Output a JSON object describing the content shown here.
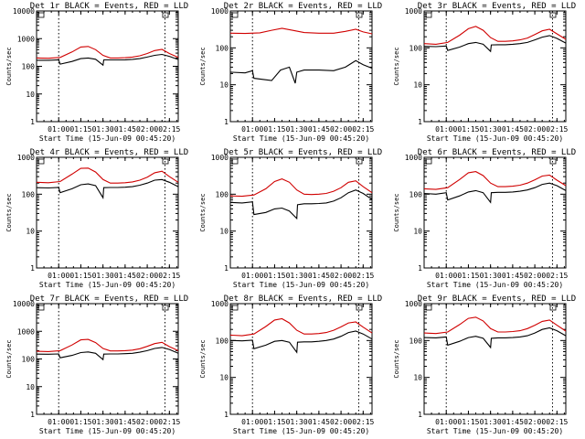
{
  "chart_data": [
    {
      "type": "line",
      "title": "Det 1r BLACK = Events, RED = LLD",
      "xlabel": "Start Time (15-Jun-09 00:45:20)",
      "ylabel": "Counts/sec",
      "ymax_label": "10000",
      "yticks": [
        "10000",
        "1000",
        "100",
        "10",
        "1"
      ],
      "xticks": [
        "01:00",
        "01:15",
        "01:30",
        "01:45",
        "02:00",
        "02:15"
      ],
      "yscale": "log",
      "ylim": [
        1,
        10000
      ],
      "xlim_minutes": [
        0,
        96
      ],
      "vlines_minutes": [
        15,
        87
      ],
      "series": [
        {
          "color": "#d00000",
          "x": [
            0,
            8,
            16,
            24,
            30,
            35,
            40,
            45,
            50,
            55,
            60,
            65,
            70,
            75,
            80,
            85,
            90,
            96
          ],
          "y": [
            200,
            195,
            210,
            330,
            500,
            520,
            400,
            250,
            200,
            200,
            205,
            215,
            240,
            290,
            370,
            410,
            290,
            210
          ]
        },
        {
          "color": "#000000",
          "x": [
            0,
            8,
            15,
            16,
            24,
            30,
            35,
            40,
            45,
            45.5,
            50,
            55,
            60,
            65,
            70,
            75,
            80,
            85,
            90,
            96
          ],
          "y": [
            165,
            165,
            170,
            120,
            150,
            190,
            200,
            180,
            110,
            170,
            170,
            170,
            172,
            178,
            190,
            215,
            250,
            270,
            230,
            175
          ]
        }
      ]
    },
    {
      "type": "line",
      "title": "Det 2r BLACK = Events, RED = LLD",
      "xlabel": "Start Time (15-Jun-09 00:45:20)",
      "ylabel": "Counts/sec",
      "ymax_label": "1000",
      "yticks": [
        "1000",
        "100",
        "10",
        "1"
      ],
      "xticks": [
        "01:00",
        "01:15",
        "01:30",
        "01:45",
        "02:00",
        "02:15"
      ],
      "yscale": "log",
      "ylim": [
        1,
        1000
      ],
      "xlim_minutes": [
        0,
        96
      ],
      "vlines_minutes": [
        15,
        87
      ],
      "series": [
        {
          "color": "#d00000",
          "x": [
            0,
            10,
            20,
            28,
            35,
            42,
            50,
            60,
            70,
            78,
            85,
            90,
            96
          ],
          "y": [
            250,
            245,
            255,
            300,
            340,
            300,
            260,
            250,
            250,
            280,
            320,
            270,
            240
          ]
        },
        {
          "color": "#000000",
          "x": [
            0,
            10,
            15,
            16,
            22,
            28,
            34,
            40,
            44,
            45,
            50,
            60,
            70,
            78,
            85,
            90,
            96
          ],
          "y": [
            22,
            21,
            24,
            15,
            14,
            13,
            25,
            30,
            11,
            22,
            25,
            25,
            24,
            30,
            45,
            35,
            28
          ]
        }
      ]
    },
    {
      "type": "line",
      "title": "Det 3r BLACK = Events, RED = LLD",
      "xlabel": "Start Time (15-Jun-09 00:45:20)",
      "ylabel": "Counts/sec",
      "ymax_label": "1000",
      "yticks": [
        "1000",
        "100",
        "10",
        "1"
      ],
      "xticks": [
        "01:00",
        "01:15",
        "01:30",
        "01:45",
        "02:00",
        "02:15"
      ],
      "yscale": "log",
      "ylim": [
        1,
        1000
      ],
      "xlim_minutes": [
        0,
        96
      ],
      "vlines_minutes": [
        15,
        87
      ],
      "series": [
        {
          "color": "#d00000",
          "x": [
            0,
            8,
            16,
            24,
            30,
            35,
            40,
            45,
            50,
            55,
            60,
            65,
            70,
            75,
            80,
            85,
            90,
            96
          ],
          "y": [
            130,
            125,
            140,
            220,
            330,
            380,
            300,
            190,
            150,
            150,
            155,
            165,
            185,
            230,
            290,
            320,
            240,
            170
          ]
        },
        {
          "color": "#000000",
          "x": [
            0,
            8,
            15,
            16,
            24,
            30,
            35,
            40,
            45,
            45.5,
            50,
            55,
            60,
            65,
            70,
            75,
            80,
            85,
            90,
            96
          ],
          "y": [
            110,
            108,
            112,
            85,
            105,
            130,
            140,
            125,
            80,
            120,
            122,
            122,
            125,
            130,
            140,
            165,
            195,
            215,
            180,
            135
          ]
        }
      ]
    },
    {
      "type": "line",
      "title": "Det 4r BLACK = Events, RED = LLD",
      "xlabel": "Start Time (15-Jun-09 00:45:20)",
      "ylabel": "Counts/sec",
      "ymax_label": "1000",
      "yticks": [
        "1000",
        "100",
        "10",
        "1"
      ],
      "xticks": [
        "01:00",
        "01:15",
        "01:30",
        "01:45",
        "02:00",
        "02:15"
      ],
      "yscale": "log",
      "ylim": [
        1,
        1000
      ],
      "xlim_minutes": [
        0,
        96
      ],
      "vlines_minutes": [
        15,
        87
      ],
      "series": [
        {
          "color": "#d00000",
          "x": [
            0,
            8,
            16,
            24,
            30,
            35,
            40,
            45,
            50,
            55,
            60,
            65,
            70,
            75,
            80,
            85,
            90,
            96
          ],
          "y": [
            210,
            205,
            220,
            350,
            500,
            510,
            400,
            250,
            200,
            200,
            205,
            215,
            240,
            290,
            380,
            420,
            300,
            210
          ]
        },
        {
          "color": "#000000",
          "x": [
            0,
            8,
            15,
            16,
            24,
            30,
            35,
            40,
            45,
            45.5,
            50,
            55,
            60,
            65,
            70,
            75,
            80,
            85,
            90,
            96
          ],
          "y": [
            150,
            148,
            152,
            110,
            140,
            180,
            190,
            170,
            80,
            150,
            152,
            152,
            155,
            160,
            175,
            200,
            240,
            250,
            210,
            160
          ]
        }
      ]
    },
    {
      "type": "line",
      "title": "Det 5r BLACK = Events, RED = LLD",
      "xlabel": "Start Time (15-Jun-09 00:45:20)",
      "ylabel": "Counts/sec",
      "ymax_label": "1000",
      "yticks": [
        "1000",
        "100",
        "10",
        "1"
      ],
      "xticks": [
        "01:00",
        "01:15",
        "01:30",
        "01:45",
        "02:00",
        "02:15"
      ],
      "yscale": "log",
      "ylim": [
        1,
        1000
      ],
      "xlim_minutes": [
        0,
        96
      ],
      "vlines_minutes": [
        15,
        87
      ],
      "series": [
        {
          "color": "#d00000",
          "x": [
            0,
            8,
            16,
            24,
            30,
            35,
            40,
            45,
            50,
            55,
            60,
            65,
            70,
            75,
            80,
            85,
            90,
            96
          ],
          "y": [
            90,
            88,
            95,
            140,
            220,
            260,
            210,
            130,
            100,
            98,
            100,
            105,
            120,
            150,
            210,
            230,
            160,
            110
          ]
        },
        {
          "color": "#000000",
          "x": [
            0,
            8,
            15,
            16,
            24,
            30,
            35,
            40,
            45,
            45.5,
            50,
            55,
            60,
            65,
            70,
            75,
            80,
            85,
            90,
            96
          ],
          "y": [
            60,
            58,
            62,
            28,
            32,
            40,
            42,
            35,
            22,
            52,
            55,
            55,
            56,
            58,
            65,
            80,
            110,
            130,
            105,
            72
          ]
        }
      ]
    },
    {
      "type": "line",
      "title": "Det 6r BLACK = Events, RED = LLD",
      "xlabel": "Start Time (15-Jun-09 00:45:20)",
      "ylabel": "Counts/sec",
      "ymax_label": "1000",
      "yticks": [
        "1000",
        "100",
        "10",
        "1"
      ],
      "xticks": [
        "01:00",
        "01:15",
        "01:30",
        "01:45",
        "02:00",
        "02:15"
      ],
      "yscale": "log",
      "ylim": [
        1,
        1000
      ],
      "xlim_minutes": [
        0,
        96
      ],
      "vlines_minutes": [
        15,
        87
      ],
      "series": [
        {
          "color": "#d00000",
          "x": [
            0,
            8,
            16,
            24,
            30,
            35,
            40,
            45,
            50,
            55,
            60,
            65,
            70,
            75,
            80,
            85,
            90,
            96
          ],
          "y": [
            140,
            135,
            150,
            250,
            380,
            410,
            320,
            200,
            160,
            160,
            165,
            175,
            200,
            245,
            310,
            330,
            240,
            170
          ]
        },
        {
          "color": "#000000",
          "x": [
            0,
            8,
            15,
            16,
            24,
            30,
            35,
            40,
            45,
            45.5,
            50,
            55,
            60,
            65,
            70,
            75,
            80,
            85,
            90,
            96
          ],
          "y": [
            105,
            100,
            110,
            70,
            90,
            115,
            125,
            110,
            60,
            110,
            112,
            112,
            115,
            120,
            130,
            150,
            185,
            200,
            170,
            125
          ]
        }
      ]
    },
    {
      "type": "line",
      "title": "Det 7r BLACK = Events, RED = LLD",
      "xlabel": "Start Time (15-Jun-09 00:45:20)",
      "ylabel": "Counts/sec",
      "ymax_label": "10000",
      "yticks": [
        "10000",
        "1000",
        "100",
        "10",
        "1"
      ],
      "xticks": [
        "01:00",
        "01:15",
        "01:30",
        "01:45",
        "02:00",
        "02:15"
      ],
      "yscale": "log",
      "ylim": [
        1,
        10000
      ],
      "xlim_minutes": [
        0,
        96
      ],
      "vlines_minutes": [
        15,
        87
      ],
      "series": [
        {
          "color": "#d00000",
          "x": [
            0,
            8,
            16,
            24,
            30,
            35,
            40,
            45,
            50,
            55,
            60,
            65,
            70,
            75,
            80,
            85,
            90,
            96
          ],
          "y": [
            190,
            185,
            200,
            320,
            490,
            510,
            390,
            240,
            195,
            195,
            200,
            210,
            235,
            285,
            360,
            400,
            280,
            200
          ]
        },
        {
          "color": "#000000",
          "x": [
            0,
            8,
            15,
            16,
            24,
            30,
            35,
            40,
            45,
            45.5,
            50,
            55,
            60,
            65,
            70,
            75,
            80,
            85,
            90,
            96
          ],
          "y": [
            150,
            148,
            152,
            110,
            135,
            170,
            180,
            160,
            95,
            150,
            152,
            152,
            155,
            160,
            175,
            200,
            240,
            260,
            220,
            160
          ]
        }
      ]
    },
    {
      "type": "line",
      "title": "Det 8r BLACK = Events, RED = LLD",
      "xlabel": "Start Time (15-Jun-09 00:45:20)",
      "ylabel": "Counts/sec",
      "ymax_label": "1000",
      "yticks": [
        "1000",
        "100",
        "10",
        "1"
      ],
      "xticks": [
        "01:00",
        "01:15",
        "01:30",
        "01:45",
        "02:00",
        "02:15"
      ],
      "yscale": "log",
      "ylim": [
        1,
        1000
      ],
      "xlim_minutes": [
        0,
        96
      ],
      "vlines_minutes": [
        15,
        87
      ],
      "series": [
        {
          "color": "#d00000",
          "x": [
            0,
            8,
            16,
            24,
            30,
            35,
            40,
            45,
            50,
            55,
            60,
            65,
            70,
            75,
            80,
            85,
            90,
            96
          ],
          "y": [
            140,
            135,
            150,
            240,
            360,
            390,
            300,
            190,
            150,
            150,
            155,
            165,
            190,
            235,
            300,
            320,
            230,
            160
          ]
        },
        {
          "color": "#000000",
          "x": [
            0,
            8,
            15,
            16,
            24,
            30,
            35,
            40,
            45,
            45.5,
            50,
            55,
            60,
            65,
            70,
            75,
            80,
            85,
            90,
            96
          ],
          "y": [
            100,
            98,
            102,
            60,
            75,
            95,
            100,
            90,
            48,
            90,
            92,
            92,
            95,
            100,
            110,
            130,
            165,
            180,
            150,
            110
          ]
        }
      ]
    },
    {
      "type": "line",
      "title": "Det 9r BLACK = Events, RED = LLD",
      "xlabel": "Start Time (15-Jun-09 00:45:20)",
      "ylabel": "Counts/sec",
      "ymax_label": "1000",
      "yticks": [
        "1000",
        "100",
        "10",
        "1"
      ],
      "xticks": [
        "01:00",
        "01:15",
        "01:30",
        "01:45",
        "02:00",
        "02:15"
      ],
      "yscale": "log",
      "ylim": [
        1,
        1000
      ],
      "xlim_minutes": [
        0,
        96
      ],
      "vlines_minutes": [
        15,
        87
      ],
      "series": [
        {
          "color": "#d00000",
          "x": [
            0,
            8,
            16,
            24,
            30,
            35,
            40,
            45,
            50,
            55,
            60,
            65,
            70,
            75,
            80,
            85,
            90,
            96
          ],
          "y": [
            160,
            155,
            170,
            270,
            400,
            430,
            340,
            210,
            170,
            170,
            175,
            185,
            210,
            260,
            330,
            360,
            260,
            180
          ]
        },
        {
          "color": "#000000",
          "x": [
            0,
            8,
            15,
            16,
            24,
            30,
            35,
            40,
            45,
            45.5,
            50,
            55,
            60,
            65,
            70,
            75,
            80,
            85,
            90,
            96
          ],
          "y": [
            120,
            118,
            125,
            75,
            95,
            120,
            130,
            115,
            65,
            115,
            118,
            118,
            120,
            125,
            135,
            160,
            200,
            220,
            185,
            135
          ]
        }
      ]
    }
  ]
}
